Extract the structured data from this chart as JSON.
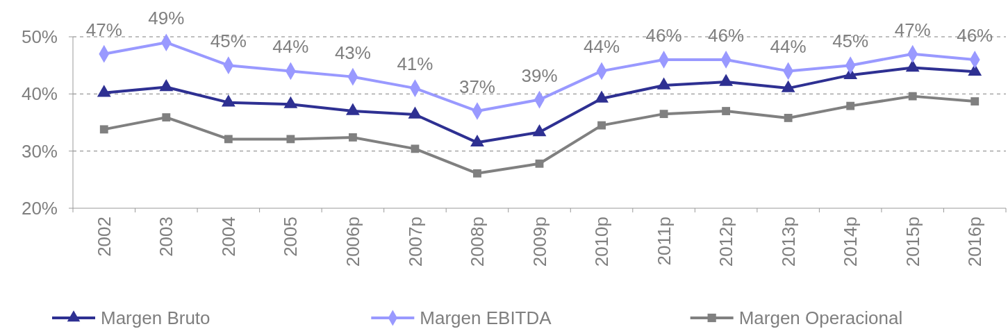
{
  "chart_data": {
    "type": "line",
    "categories": [
      "2002",
      "2003",
      "2004",
      "2005",
      "2006p",
      "2007p",
      "2008p",
      "2009p",
      "2010p",
      "2011p",
      "2012p",
      "2013p",
      "2014p",
      "2015p",
      "2016p"
    ],
    "ylim": [
      20,
      50
    ],
    "yticks": [
      {
        "value": 20,
        "label": "20%"
      },
      {
        "value": 30,
        "label": "30%"
      },
      {
        "value": 40,
        "label": "40%"
      },
      {
        "value": 50,
        "label": "50%"
      }
    ],
    "grid": "y",
    "legend": "bottom",
    "series": [
      {
        "name": "Margen Bruto",
        "color": "#2e3092",
        "marker": "triangle",
        "values": [
          40.2,
          41.2,
          38.5,
          38.2,
          37.0,
          36.4,
          31.5,
          33.3,
          39.2,
          41.5,
          42.1,
          41.0,
          43.3,
          44.6,
          43.9
        ]
      },
      {
        "name": "Margen EBITDA",
        "color": "#9999ff",
        "marker": "diamond",
        "values": [
          47,
          49,
          45,
          44,
          43,
          41,
          37,
          39,
          44,
          46,
          46,
          44,
          45,
          47,
          46
        ],
        "value_labels": [
          "47%",
          "49%",
          "45%",
          "44%",
          "43%",
          "41%",
          "37%",
          "39%",
          "44%",
          "46%",
          "46%",
          "44%",
          "45%",
          "47%",
          "46%"
        ]
      },
      {
        "name": "Margen Operacional",
        "color": "#808080",
        "marker": "square",
        "values": [
          33.8,
          35.9,
          32.1,
          32.1,
          32.4,
          30.4,
          26.1,
          27.8,
          34.5,
          36.5,
          37.0,
          35.8,
          37.9,
          39.6,
          38.7
        ]
      }
    ]
  }
}
